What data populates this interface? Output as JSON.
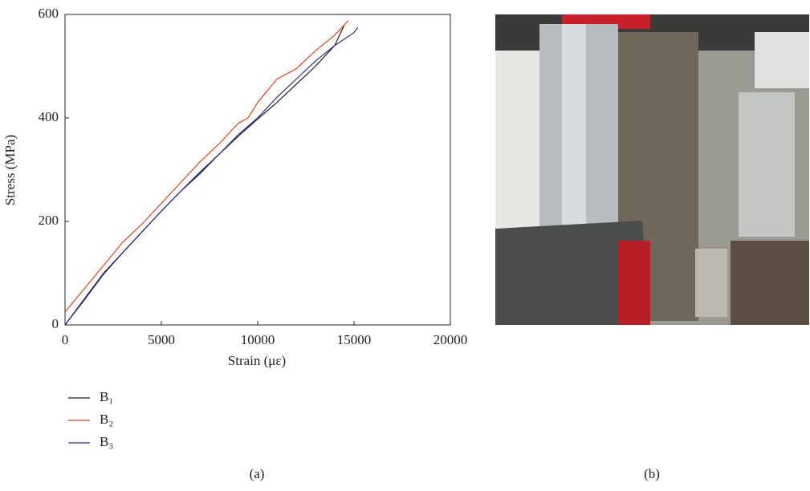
{
  "chart_data": {
    "type": "line",
    "x_label": "Strain (με)",
    "y_label": "Stress (MPa)",
    "xlim": [
      0,
      20000
    ],
    "xticks": [
      0,
      5000,
      10000,
      15000,
      20000
    ],
    "ylim": [
      0,
      600
    ],
    "yticks": [
      0,
      200,
      400,
      600
    ],
    "series": [
      {
        "name": "B₁",
        "color": "#1a1a1a",
        "x": [
          0,
          1000,
          2000,
          3000,
          4000,
          5000,
          6000,
          7000,
          8000,
          9000,
          10000,
          11000,
          12000,
          13000,
          14000,
          14500
        ],
        "values": [
          0,
          50,
          100,
          140,
          180,
          220,
          258,
          295,
          330,
          365,
          398,
          430,
          465,
          500,
          540,
          580
        ]
      },
      {
        "name": "B₂",
        "color": "#e8421c",
        "x": [
          0,
          1000,
          2000,
          3000,
          4000,
          5000,
          6000,
          7000,
          8000,
          9000,
          9500,
          10000,
          11000,
          12000,
          13000,
          14000,
          14700
        ],
        "values": [
          25,
          70,
          115,
          160,
          195,
          235,
          275,
          315,
          350,
          390,
          400,
          430,
          475,
          495,
          530,
          560,
          588
        ]
      },
      {
        "name": "B₃",
        "color": "#2a2a8c",
        "x": [
          0,
          1000,
          2000,
          3000,
          4000,
          5000,
          6000,
          7000,
          8000,
          9000,
          10000,
          11000,
          12000,
          13000,
          14000,
          15000,
          15200
        ],
        "values": [
          0,
          48,
          98,
          140,
          180,
          220,
          258,
          292,
          330,
          368,
          400,
          440,
          475,
          510,
          540,
          565,
          575
        ]
      }
    ]
  },
  "captions": [
    "(a)",
    "(b)"
  ]
}
